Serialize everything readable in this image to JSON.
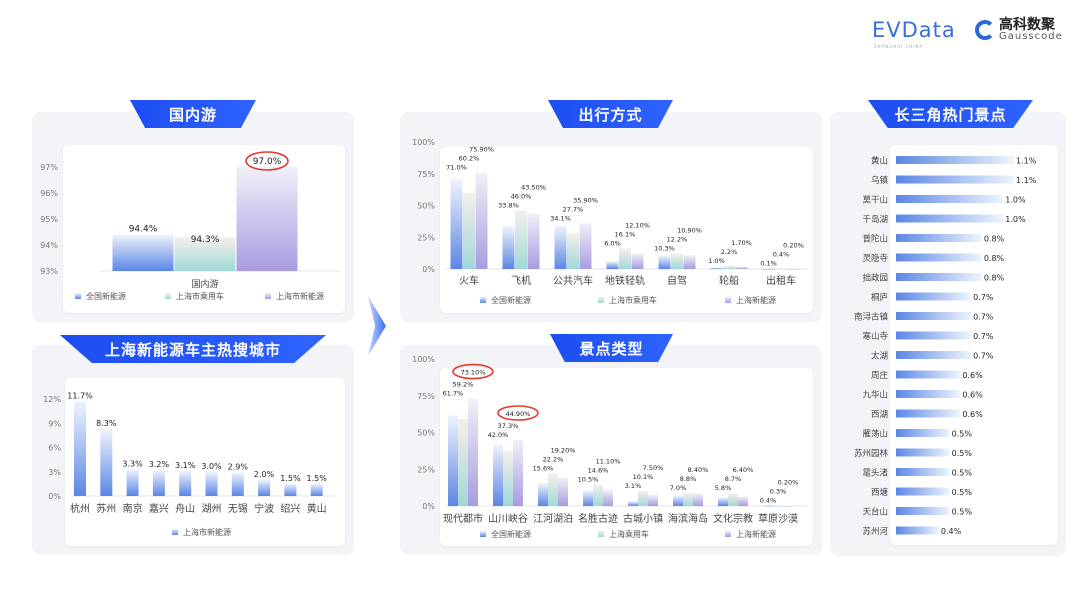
{
  "logos": {
    "evdata": "EVData",
    "evdata_sub": "SHANGHAI CHINA",
    "gauss_cn": "高科数聚",
    "gauss_en": "Gausscode"
  },
  "sections": {
    "domestic": "国内游",
    "cities": "上海新能源车主热搜城市",
    "transport": "出行方式",
    "scenic_type": "景点类型",
    "hot_spots": "长三角热门景点"
  },
  "colors": {
    "tag_blue": "#1d4df2",
    "series_blue": "#5b86e5",
    "series_teal": "#9fd8d8",
    "series_purple": "#a99be0",
    "highlight_red": "#e03a2e"
  },
  "chart_data": [
    {
      "type": "bar",
      "categories": [
        "国内游"
      ],
      "ylim": [
        93,
        97
      ],
      "ytick_labels": [
        "93%",
        "94%",
        "95%",
        "96%",
        "97%"
      ],
      "series": [
        {
          "name": "全国新能源",
          "values": [
            94.4
          ],
          "labels": [
            "94.4%"
          ]
        },
        {
          "name": "上海市乘用车",
          "values": [
            94.3
          ],
          "labels": [
            "94.3%"
          ]
        },
        {
          "name": "上海市新能源",
          "values": [
            97.0
          ],
          "labels": [
            "97.0%"
          ]
        }
      ],
      "circled": [
        [
          2,
          0
        ]
      ],
      "legend": "bottom",
      "grid": false
    },
    {
      "type": "bar",
      "categories": [
        "杭州",
        "苏州",
        "南京",
        "嘉兴",
        "舟山",
        "湖州",
        "无锡",
        "宁波",
        "绍兴",
        "黄山"
      ],
      "ylim": [
        0,
        12
      ],
      "ytick_labels": [
        "0%",
        "3%",
        "6%",
        "9%",
        "12%"
      ],
      "series": [
        {
          "name": "上海市新能源",
          "values": [
            11.7,
            8.3,
            3.3,
            3.2,
            3.1,
            3.0,
            2.9,
            2.0,
            1.5,
            1.5
          ],
          "labels": [
            "11.7%",
            "8.3%",
            "3.3%",
            "3.2%",
            "3.1%",
            "3.0%",
            "2.9%",
            "2.0%",
            "1.5%",
            "1.5%"
          ]
        }
      ],
      "circled": [],
      "legend": "bottom",
      "grid": false
    },
    {
      "type": "bar",
      "categories": [
        "火车",
        "飞机",
        "公共汽车",
        "地铁轻轨",
        "自驾",
        "轮船",
        "出租车"
      ],
      "ylim": [
        0,
        100
      ],
      "ytick_labels": [
        "0%",
        "25%",
        "50%",
        "75%",
        "100%"
      ],
      "series": [
        {
          "name": "全国新能源",
          "values": [
            71.0,
            33.8,
            34.1,
            6.0,
            10.3,
            1.0,
            0.1
          ],
          "labels": [
            "71.0%",
            "33.8%",
            "34.1%",
            "6.0%",
            "10.3%",
            "1.0%",
            "0.1%"
          ]
        },
        {
          "name": "上海市乘用车",
          "values": [
            60.2,
            46.0,
            27.7,
            16.1,
            12.2,
            2.2,
            0.4
          ],
          "labels": [
            "60.2%",
            "46.0%",
            "27.7%",
            "16.1%",
            "12.2%",
            "2.2%",
            "0.4%"
          ]
        },
        {
          "name": "上海新能源",
          "values": [
            75.9,
            43.5,
            35.9,
            12.1,
            10.9,
            1.7,
            0.2
          ],
          "labels": [
            "75.90%",
            "43.50%",
            "35.90%",
            "12.10%",
            "10.90%",
            "1.70%",
            "0.20%"
          ]
        }
      ],
      "circled": [],
      "legend": "bottom",
      "grid": false
    },
    {
      "type": "bar",
      "categories": [
        "现代都市",
        "山川峡谷",
        "江河湖泊",
        "名胜古迹",
        "古城小镇",
        "海滨海岛",
        "文化宗教",
        "草原沙漠"
      ],
      "ylim": [
        0,
        100
      ],
      "ytick_labels": [
        "0%",
        "25%",
        "50%",
        "75%",
        "100%"
      ],
      "series": [
        {
          "name": "全国新能源",
          "values": [
            61.7,
            42.0,
            15.6,
            10.5,
            3.1,
            7.0,
            5.8,
            0.4
          ],
          "labels": [
            "61.7%",
            "42.0%",
            "15.6%",
            "10.5%",
            "3.1%",
            "7.0%",
            "5.8%",
            "0.4%"
          ]
        },
        {
          "name": "上海乘用车",
          "values": [
            59.2,
            37.3,
            22.2,
            14.6,
            10.1,
            8.8,
            8.7,
            0.3
          ],
          "labels": [
            "59.2%",
            "37.3%",
            "22.2%",
            "14.6%",
            "10.1%",
            "8.8%",
            "8.7%",
            "0.3%"
          ]
        },
        {
          "name": "上海新能源",
          "values": [
            73.1,
            44.9,
            19.2,
            11.1,
            7.5,
            8.4,
            6.4,
            0.2
          ],
          "labels": [
            "73.10%",
            "44.90%",
            "19.20%",
            "11.10%",
            "7.50%",
            "8.40%",
            "6.40%",
            "0.20%"
          ]
        }
      ],
      "circled": [
        [
          2,
          0
        ],
        [
          2,
          1
        ]
      ],
      "legend": "bottom",
      "grid": false
    },
    {
      "type": "bar",
      "orientation": "horizontal",
      "categories": [
        "黄山",
        "乌镇",
        "莫干山",
        "千岛湖",
        "普陀山",
        "灵隐寺",
        "拙政园",
        "桐庐",
        "南浔古镇",
        "寒山寺",
        "太湖",
        "周庄",
        "九华山",
        "西湖",
        "雁荡山",
        "苏州园林",
        "鼋头渚",
        "西塘",
        "天台山",
        "苏州河"
      ],
      "series": [
        {
          "values": [
            1.1,
            1.1,
            1.0,
            1.0,
            0.8,
            0.8,
            0.8,
            0.7,
            0.7,
            0.7,
            0.7,
            0.6,
            0.6,
            0.6,
            0.5,
            0.5,
            0.5,
            0.5,
            0.5,
            0.4
          ],
          "labels": [
            "1.1%",
            "1.1%",
            "1.0%",
            "1.0%",
            "0.8%",
            "0.8%",
            "0.8%",
            "0.7%",
            "0.7%",
            "0.7%",
            "0.7%",
            "0.6%",
            "0.6%",
            "0.6%",
            "0.5%",
            "0.5%",
            "0.5%",
            "0.5%",
            "0.5%",
            "0.4%"
          ]
        }
      ],
      "legend": "none",
      "grid": false
    }
  ]
}
